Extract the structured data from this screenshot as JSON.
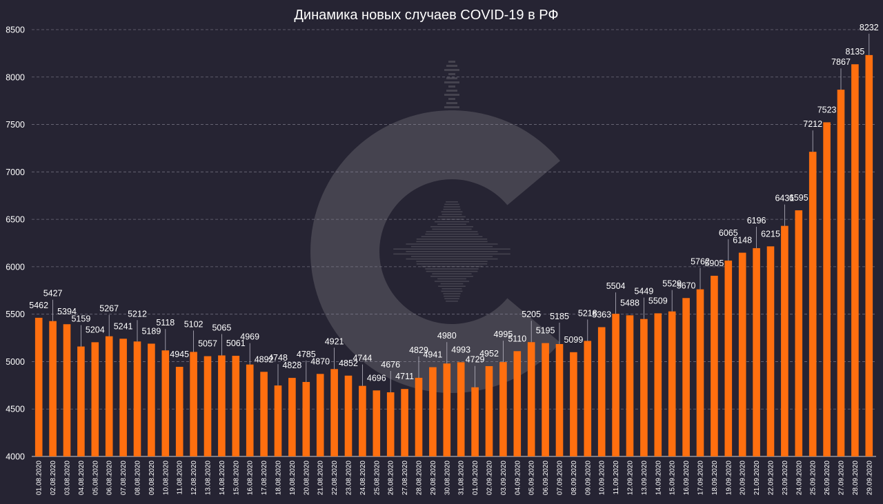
{
  "colors": {
    "background": "#262433",
    "bar": "#ff6f0f",
    "text": "#ffffff",
    "grid": "#8e8c9c",
    "watermark": "#45434f"
  },
  "chart_data": {
    "type": "bar",
    "title": "Динамика новых случаев COVID-19 в РФ",
    "xlabel": "",
    "ylabel": "",
    "ylim": [
      4000,
      8500
    ],
    "yticks": [
      4000,
      4500,
      5000,
      5500,
      6000,
      6500,
      7000,
      7500,
      8000,
      8500
    ],
    "grid": true,
    "legend": "none",
    "data_labels": true,
    "categories": [
      "01.08.2020",
      "02.08.2020",
      "03.08.2020",
      "04.08.2020",
      "05.08.2020",
      "06.08.2020",
      "07.08.2020",
      "08.08.2020",
      "09.08.2020",
      "10.08.2020",
      "11.08.2020",
      "12.08.2020",
      "13.08.2020",
      "14.08.2020",
      "15.08.2020",
      "16.08.2020",
      "17.08.2020",
      "18.08.2020",
      "19.08.2020",
      "20.08.2020",
      "21.08.2020",
      "22.08.2020",
      "23.08.2020",
      "24.08.2020",
      "25.08.2020",
      "26.08.2020",
      "27.08.2020",
      "28.08.2020",
      "29.08.2020",
      "30.08.2020",
      "31.08.2020",
      "01.09.2020",
      "02.09.2020",
      "03.09.2020",
      "04.09.2020",
      "05.09.2020",
      "06.09.2020",
      "07.09.2020",
      "08.09.2020",
      "09.09.2020",
      "10.09.2020",
      "11.09.2020",
      "12.09.2020",
      "13.09.2020",
      "14.09.2020",
      "15.09.2020",
      "16.09.2020",
      "17.09.2020",
      "18.09.2020",
      "19.09.2020",
      "20.09.2020",
      "21.09.2020",
      "22.09.2020",
      "23.09.2020",
      "24.09.2020",
      "25.09.2020",
      "26.09.2020",
      "27.09.2020",
      "28.09.2020",
      "29.09.2020"
    ],
    "values": [
      5462,
      5427,
      5394,
      5159,
      5204,
      5267,
      5241,
      5212,
      5189,
      5118,
      4945,
      5102,
      5057,
      5065,
      5061,
      4969,
      4892,
      4748,
      4828,
      4785,
      4870,
      4921,
      4852,
      4744,
      4696,
      4676,
      4711,
      4829,
      4941,
      4980,
      4993,
      4729,
      4952,
      4995,
      5110,
      5205,
      5195,
      5185,
      5099,
      5218,
      5363,
      5504,
      5488,
      5449,
      5509,
      5529,
      5670,
      5762,
      5905,
      6065,
      6148,
      6196,
      6215,
      6431,
      6595,
      7212,
      7523,
      7867,
      8135,
      8232
    ]
  }
}
